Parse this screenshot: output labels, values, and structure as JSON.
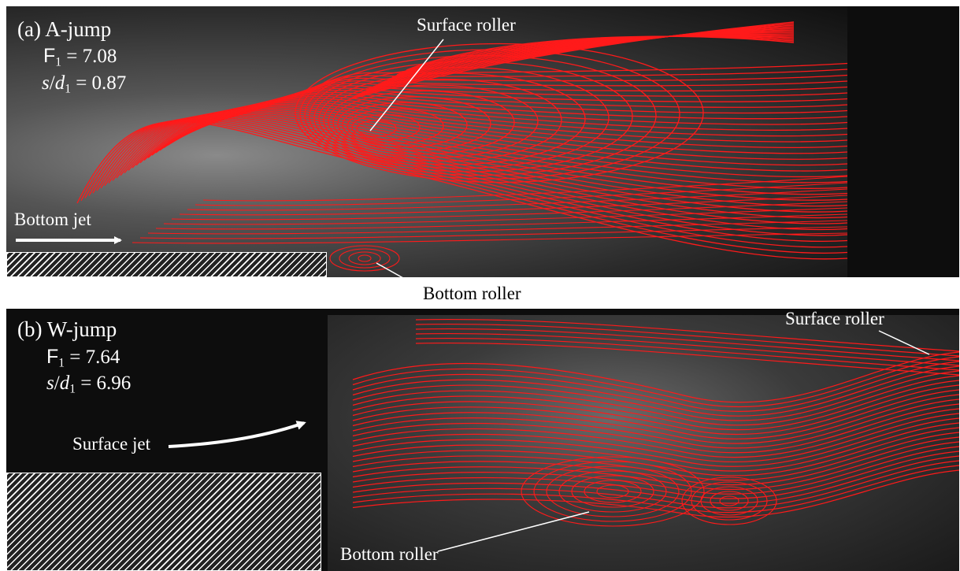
{
  "panel_a": {
    "title": "(a) A-jump",
    "froude_symbol": "F",
    "froude_sub": "1",
    "froude_value": " = 7.08",
    "ratio_s": "s",
    "ratio_slash": "/",
    "ratio_d": "d",
    "ratio_sub": "1",
    "ratio_value": " = 0.87",
    "surface_roller_label": "Surface roller",
    "bottom_jet_label": "Bottom jet",
    "bottom_roller_label": "Bottom roller"
  },
  "panel_b": {
    "title": "(b) W-jump",
    "froude_symbol": "F",
    "froude_sub": "1",
    "froude_value": " = 7.64",
    "ratio_s": "s",
    "ratio_slash": "/",
    "ratio_d": "d",
    "ratio_sub": "1",
    "ratio_value": " = 6.96",
    "surface_roller_label": "Surface roller",
    "surface_jet_label": "Surface jet",
    "bottom_roller_label": "Bottom roller"
  },
  "colors": {
    "streamline": "#ff1a1a",
    "background": "#0d0d0d",
    "annotation": "#ffffff"
  }
}
